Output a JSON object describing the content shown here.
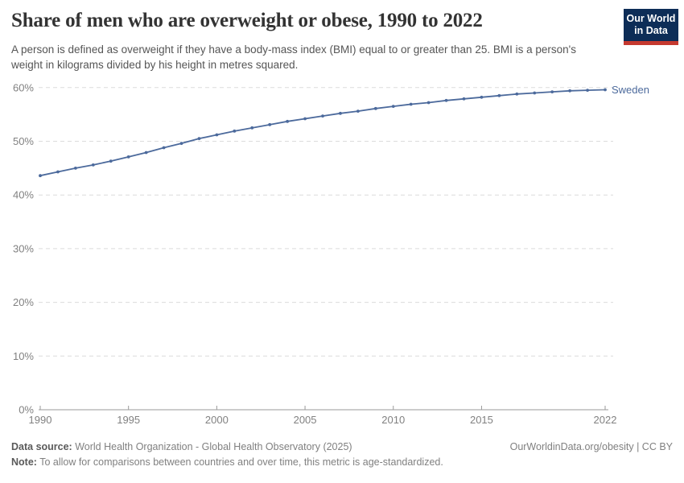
{
  "header": {
    "title": "Share of men who are overweight or obese, 1990 to 2022",
    "subtitle": "A person is defined as overweight if they have a body-mass index (BMI) equal to or greater than 25. BMI is a person's weight in kilograms divided by his height in metres squared.",
    "logo": {
      "line1": "Our World",
      "line2": "in Data",
      "bg_color": "#0d2d57",
      "stripe_color": "#c5392f"
    }
  },
  "chart_data": {
    "type": "line",
    "title": "Share of men who are overweight or obese, 1990 to 2022",
    "x": [
      1990,
      1991,
      1992,
      1993,
      1994,
      1995,
      1996,
      1997,
      1998,
      1999,
      2000,
      2001,
      2002,
      2003,
      2004,
      2005,
      2006,
      2007,
      2008,
      2009,
      2010,
      2011,
      2012,
      2013,
      2014,
      2015,
      2016,
      2017,
      2018,
      2019,
      2020,
      2021,
      2022
    ],
    "series": [
      {
        "name": "Sweden",
        "color": "#4c6a9c",
        "values": [
          43.6,
          44.3,
          45.0,
          45.6,
          46.3,
          47.1,
          47.9,
          48.8,
          49.6,
          50.5,
          51.2,
          51.9,
          52.5,
          53.1,
          53.7,
          54.2,
          54.7,
          55.2,
          55.6,
          56.1,
          56.5,
          56.9,
          57.2,
          57.6,
          57.9,
          58.2,
          58.5,
          58.8,
          59.0,
          59.2,
          59.4,
          59.5,
          59.6
        ]
      }
    ],
    "xlabel": "",
    "ylabel": "",
    "xlim": [
      1990,
      2022
    ],
    "ylim": [
      0,
      60
    ],
    "x_ticks": [
      1990,
      1995,
      2000,
      2005,
      2010,
      2015,
      2022
    ],
    "y_ticks": [
      0,
      10,
      20,
      30,
      40,
      50,
      60
    ],
    "y_tick_suffix": "%",
    "grid": "horizontal-dashed",
    "legend_position": "end-of-line-label",
    "grid_color": "#dcdcdc",
    "axis_color": "#9a9a9a",
    "tick_label_color": "#818181"
  },
  "footer": {
    "data_source_label": "Data source:",
    "data_source_text": " World Health Organization - Global Health Observatory (2025)",
    "attribution": "OurWorldinData.org/obesity | CC BY",
    "note_label": "Note:",
    "note_text": " To allow for comparisons between countries and over time, this metric is age-standardized."
  }
}
